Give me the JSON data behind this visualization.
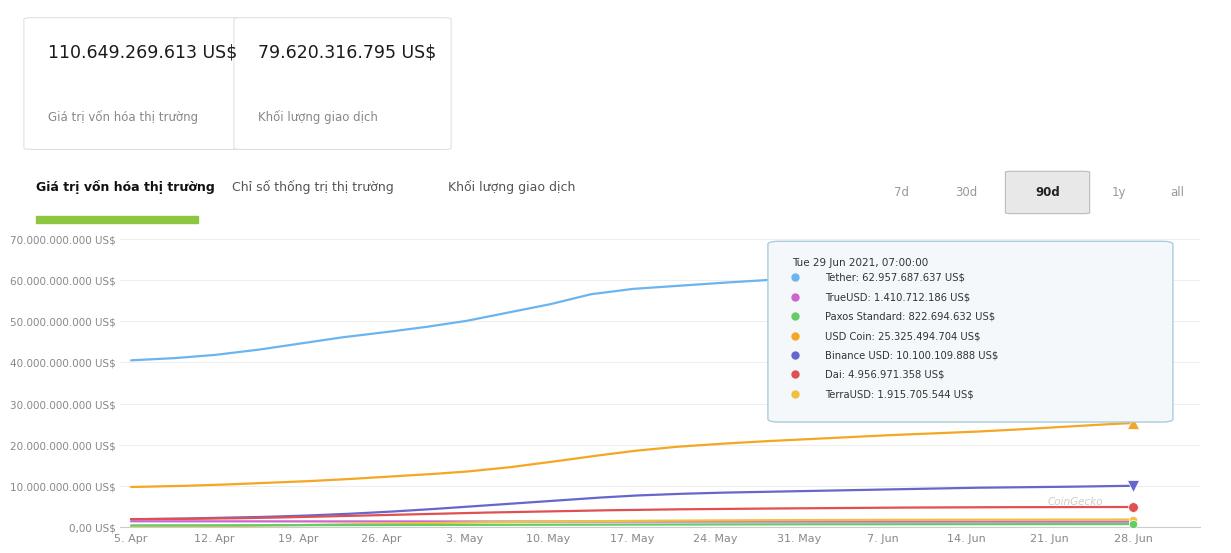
{
  "title_value1": "110.649.269.613 US$",
  "title_label1": "Giá trị vốn hóa thị trường",
  "title_value2": "79.620.316.795 US$",
  "title_label2": "Khối lượng giao dịch",
  "tab_active": "Giá trị vốn hóa thị trường",
  "tab2": "Chỉ số thống trị thị trường",
  "tab3": "Khối lượng giao dịch",
  "time_buttons": [
    "7d",
    "30d",
    "90d",
    "1y",
    "all"
  ],
  "active_button": "90d",
  "x_labels": [
    "5. Apr",
    "12. Apr",
    "19. Apr",
    "26. Apr",
    "3. May",
    "10. May",
    "17. May",
    "24. May",
    "31. May",
    "7. Jun",
    "14. Jun",
    "21. Jun",
    "28. Jun"
  ],
  "y_ticks": [
    0,
    10000000000,
    20000000000,
    30000000000,
    40000000000,
    50000000000,
    60000000000,
    70000000000
  ],
  "y_tick_labels": [
    "0,00 US$",
    "10.000.000.000 US$",
    "20.000.000.000 US$",
    "30.000.000.000 US$",
    "40.000.000.000 US$",
    "50.000.000.000 US$",
    "60.000.000.000 US$",
    "70.000.000.000 US$"
  ],
  "series": {
    "Tether": {
      "color": "#6ab4f0",
      "values": [
        40500000000,
        41000000000,
        41800000000,
        43000000000,
        44500000000,
        46000000000,
        47200000000,
        48500000000,
        50000000000,
        52000000000,
        54000000000,
        56500000000,
        57800000000,
        58500000000,
        59200000000,
        59800000000,
        60500000000,
        61000000000,
        61400000000,
        61800000000,
        62000000000,
        62200000000,
        62500000000,
        62700000000,
        62957687637
      ]
    },
    "USD Coin": {
      "color": "#f5a623",
      "values": [
        9800000000,
        10000000000,
        10300000000,
        10700000000,
        11100000000,
        11600000000,
        12200000000,
        12800000000,
        13500000000,
        14500000000,
        15800000000,
        17200000000,
        18500000000,
        19500000000,
        20200000000,
        20800000000,
        21300000000,
        21800000000,
        22300000000,
        22700000000,
        23100000000,
        23600000000,
        24200000000,
        24800000000,
        25325494704
      ]
    },
    "Binance USD": {
      "color": "#6666cc",
      "values": [
        2000000000,
        2100000000,
        2300000000,
        2500000000,
        2800000000,
        3200000000,
        3700000000,
        4300000000,
        5000000000,
        5700000000,
        6400000000,
        7100000000,
        7700000000,
        8100000000,
        8400000000,
        8600000000,
        8800000000,
        9000000000,
        9200000000,
        9400000000,
        9600000000,
        9700000000,
        9800000000,
        9950000000,
        10100109888
      ]
    },
    "Dai": {
      "color": "#e05050",
      "values": [
        2000000000,
        2050000000,
        2150000000,
        2300000000,
        2500000000,
        2750000000,
        3000000000,
        3250000000,
        3500000000,
        3700000000,
        3900000000,
        4100000000,
        4250000000,
        4380000000,
        4480000000,
        4560000000,
        4640000000,
        4720000000,
        4790000000,
        4840000000,
        4880000000,
        4910000000,
        4930000000,
        4945000000,
        4956971358
      ]
    },
    "TrueUSD": {
      "color": "#cc66cc",
      "values": [
        1500000000,
        1490000000,
        1475000000,
        1460000000,
        1452000000,
        1445000000,
        1438000000,
        1432000000,
        1428000000,
        1424000000,
        1420000000,
        1418000000,
        1416000000,
        1415000000,
        1414000000,
        1413500000,
        1413000000,
        1412500000,
        1412000000,
        1411500000,
        1411200000,
        1411000000,
        1410800000,
        1410700000,
        1410712186
      ]
    },
    "TerraUSD": {
      "color": "#f0c040",
      "values": [
        180000000,
        220000000,
        300000000,
        420000000,
        580000000,
        750000000,
        920000000,
        1080000000,
        1220000000,
        1340000000,
        1440000000,
        1530000000,
        1600000000,
        1660000000,
        1710000000,
        1750000000,
        1780000000,
        1810000000,
        1840000000,
        1860000000,
        1875000000,
        1885000000,
        1895000000,
        1905000000,
        1915705544
      ]
    },
    "Paxos Standard": {
      "color": "#66cc66",
      "values": [
        500000000,
        510000000,
        525000000,
        540000000,
        555000000,
        570000000,
        590000000,
        615000000,
        640000000,
        665000000,
        690000000,
        710000000,
        725000000,
        738000000,
        748000000,
        756000000,
        763000000,
        769000000,
        774000000,
        778000000,
        782000000,
        786000000,
        790000000,
        796000000,
        822694632
      ]
    }
  },
  "tooltip": {
    "date": "Tue 29 Jun 2021, 07:00:00",
    "entries": [
      {
        "name": "Tether",
        "color": "#6ab4f0",
        "value": "62.957.687.637 US$"
      },
      {
        "name": "TrueUSD",
        "color": "#cc66cc",
        "value": "1.410.712.186 US$"
      },
      {
        "name": "Paxos Standard",
        "color": "#66cc66",
        "value": "822.694.632 US$"
      },
      {
        "name": "USD Coin",
        "color": "#f5a623",
        "value": "25.325.494.704 US$"
      },
      {
        "name": "Binance USD",
        "color": "#6666cc",
        "value": "10.100.109.888 US$"
      },
      {
        "name": "Dai",
        "color": "#e05050",
        "value": "4.956.971.358 US$"
      },
      {
        "name": "TerraUSD",
        "color": "#f0c040",
        "value": "1.915.705.544 US$"
      }
    ]
  },
  "bg_color": "#ffffff",
  "grid_color": "#eeeeee"
}
